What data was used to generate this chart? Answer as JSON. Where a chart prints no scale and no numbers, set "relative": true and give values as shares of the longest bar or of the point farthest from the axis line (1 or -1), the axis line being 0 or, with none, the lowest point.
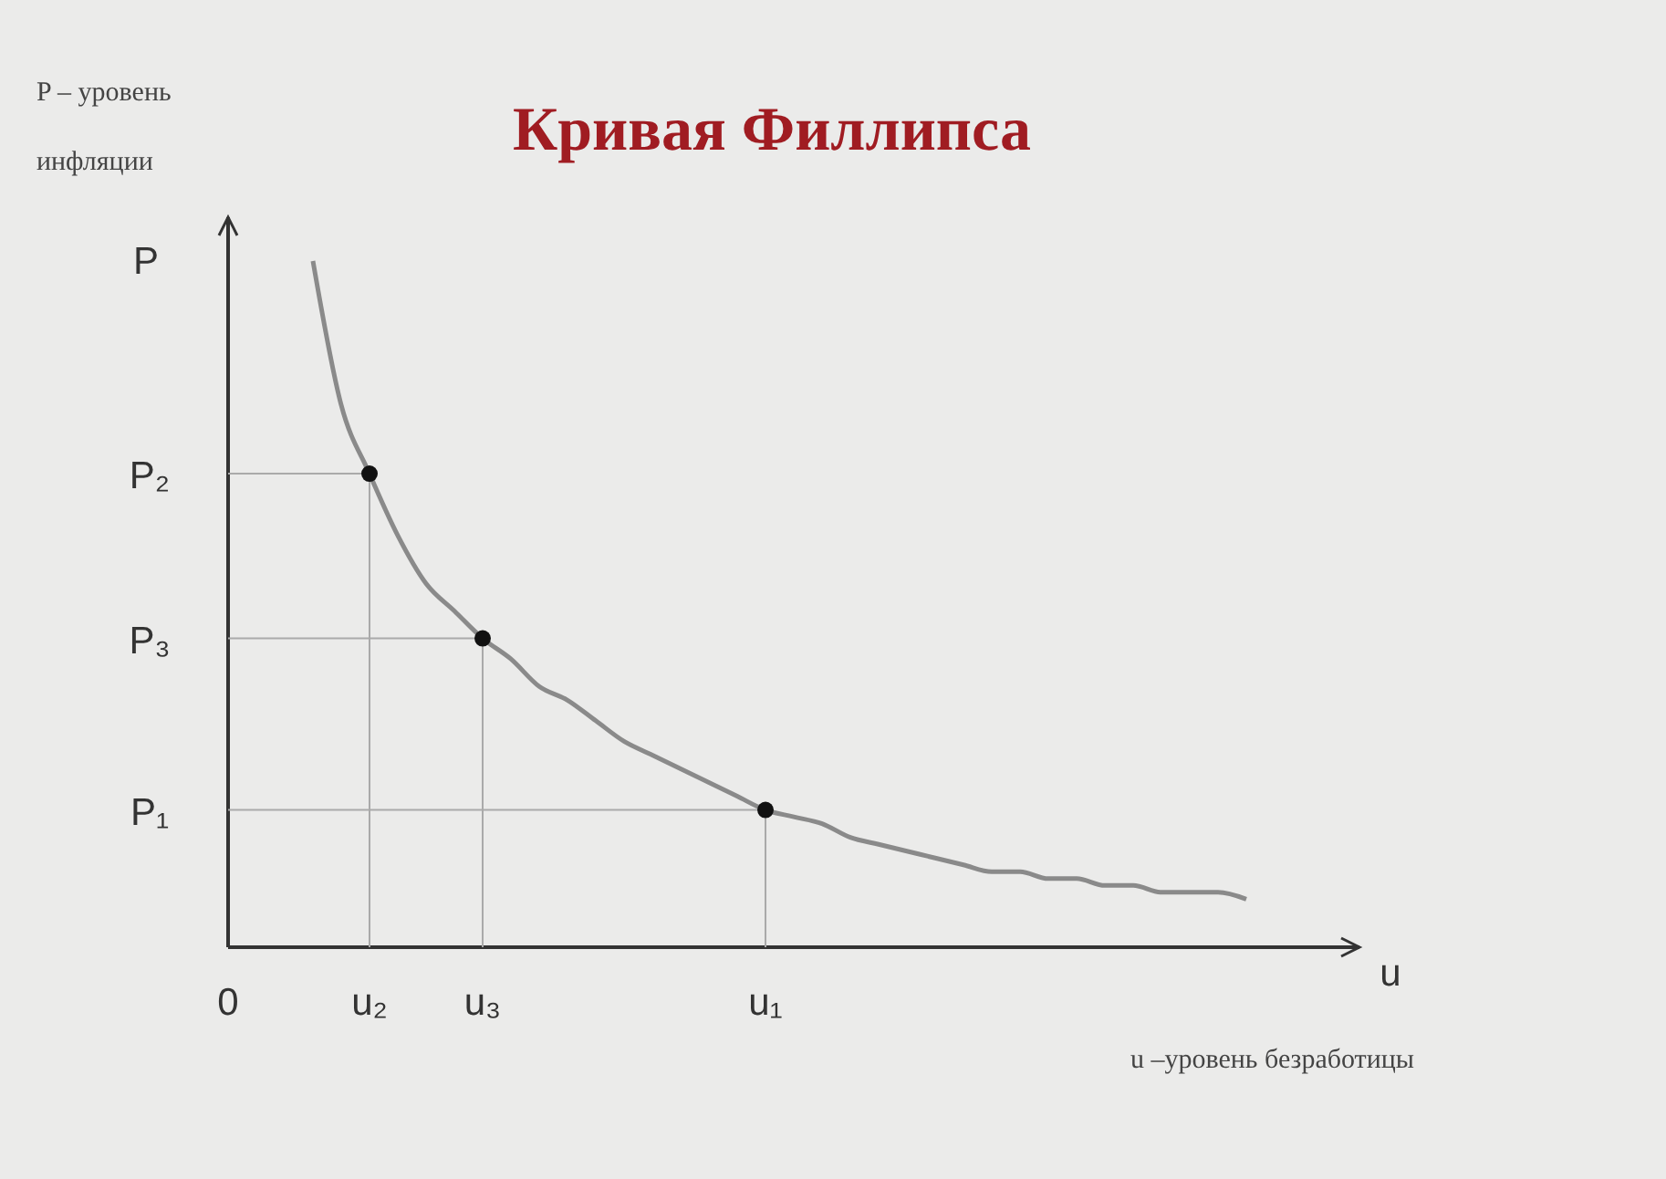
{
  "chart_data": {
    "type": "line",
    "title": "Кривая Филлипса",
    "xlabel": "u",
    "ylabel": "P",
    "relative": true,
    "annotations": [
      "P – уровень инфляции",
      "u –уровень безработицы",
      "P₂",
      "P₃",
      "P₁"
    ],
    "categories": [
      "0",
      null,
      null,
      null,
      null,
      "u₂",
      null,
      null,
      null,
      "u₃",
      null,
      null,
      null,
      null,
      null,
      null,
      null,
      null,
      null,
      "u₁",
      null,
      null,
      null,
      null,
      null,
      null,
      null,
      null,
      null,
      null,
      null,
      null,
      null,
      null,
      null,
      null,
      null
    ],
    "series": [
      {
        "color": "#8a8a8a",
        "values": [
          null,
          null,
          null,
          1,
          0.79,
          0.69,
          0.6,
          0.53,
          0.49,
          0.45,
          0.42,
          0.38,
          0.36,
          0.33,
          0.3,
          0.28,
          0.26,
          0.24,
          0.22,
          0.2,
          0.19,
          0.18,
          0.16,
          0.15,
          0.14,
          0.13,
          0.12,
          0.11,
          0.11,
          0.1,
          0.1,
          0.09,
          0.09,
          0.08,
          0.08,
          0.08,
          0.07
        ]
      },
      {
        "type": "scatter",
        "color": "#111111",
        "values": [
          null,
          null,
          null,
          null,
          null,
          0.69,
          null,
          null,
          null,
          0.45,
          null,
          null,
          null,
          null,
          null,
          null,
          null,
          null,
          null,
          0.2,
          null,
          null,
          null,
          null,
          null,
          null,
          null,
          null,
          null,
          null,
          null,
          null,
          null,
          null,
          null,
          null,
          null
        ]
      }
    ]
  }
}
